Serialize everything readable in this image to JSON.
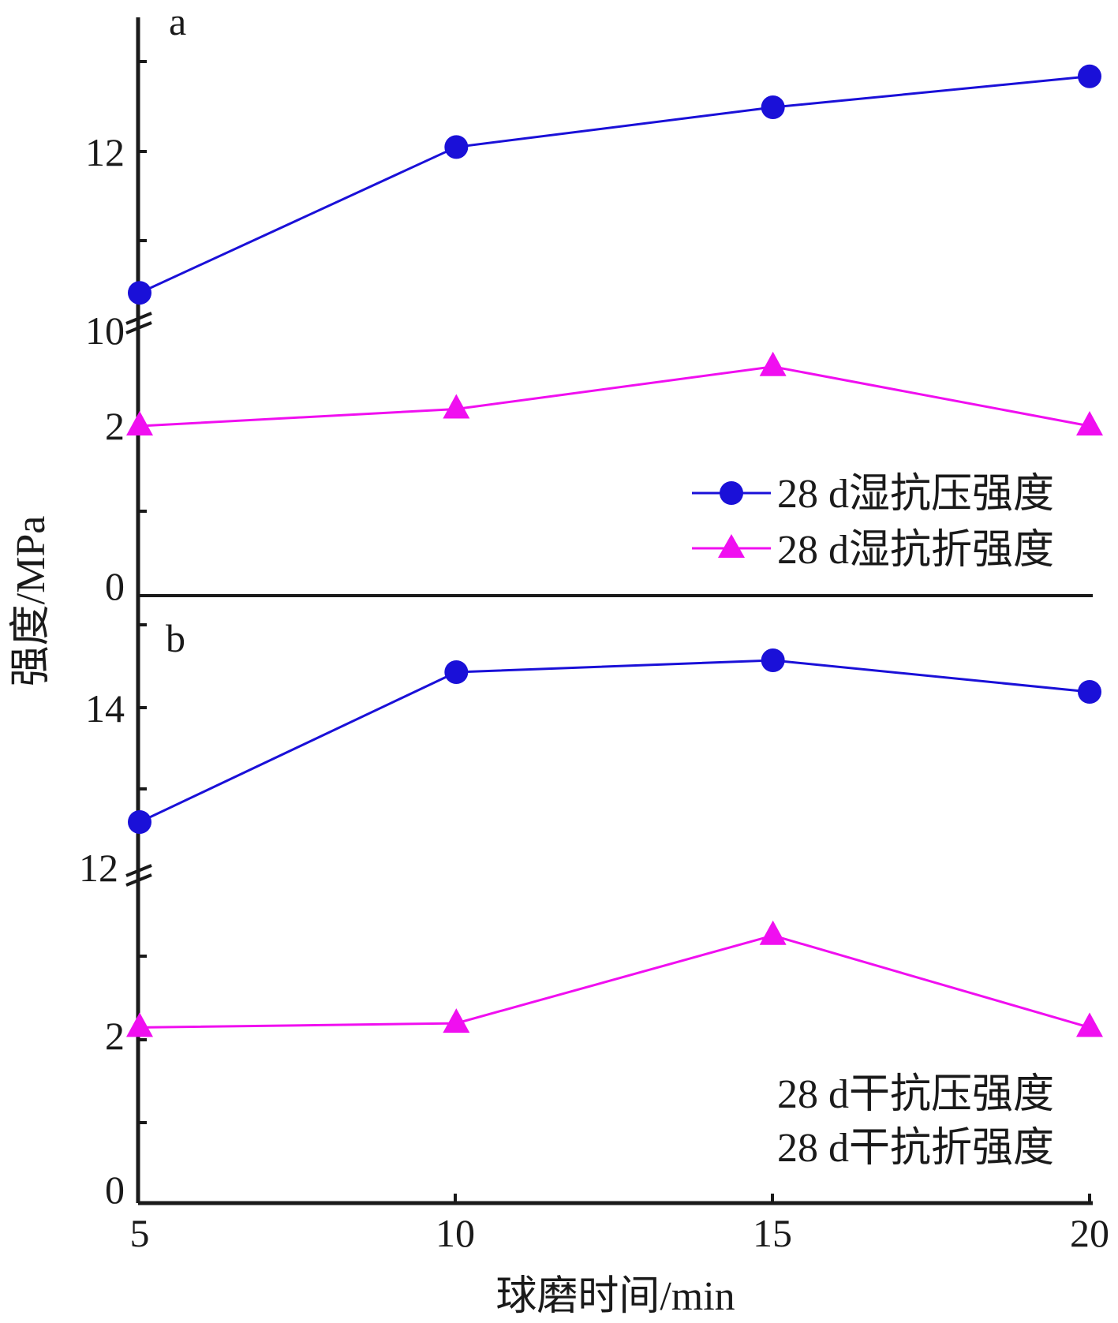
{
  "colors": {
    "compressive": "#1a10d8",
    "flexural": "#f00ff0",
    "axis": "#1a1a1a"
  },
  "chart_data": [
    {
      "type": "line",
      "panel": "a",
      "xlabel": "球磨时间/min",
      "ylabel": "强度/MPa",
      "x": [
        5,
        10,
        15,
        20
      ],
      "x_ticks": [
        "5",
        "10",
        "15",
        "20"
      ],
      "broken_y_axis": true,
      "y_lower_segment": {
        "range": [
          0,
          4
        ],
        "ticks": [
          "0",
          "2"
        ]
      },
      "y_upper_segment": {
        "range": [
          10,
          13.8
        ],
        "ticks": [
          "10",
          "12"
        ]
      },
      "series": [
        {
          "name": "28 d湿抗压强度",
          "marker": "circle",
          "values": [
            10.4,
            12.05,
            12.5,
            12.85
          ]
        },
        {
          "name": "28 d湿抗折强度",
          "marker": "triangle",
          "values": [
            2.0,
            2.2,
            2.7,
            2.0
          ]
        }
      ],
      "legend_position": "right"
    },
    {
      "type": "line",
      "panel": "b",
      "xlabel": "",
      "ylabel": "",
      "x": [
        5,
        10,
        15,
        20
      ],
      "broken_y_axis": true,
      "y_lower_segment": {
        "range": [
          0,
          4
        ],
        "ticks": [
          "0",
          "2"
        ]
      },
      "y_upper_segment": {
        "range": [
          12,
          15.3
        ],
        "ticks": [
          "12",
          "14"
        ]
      },
      "series": [
        {
          "name": "28 d干抗压强度",
          "marker": "circle",
          "values": [
            12.55,
            14.45,
            14.6,
            14.2
          ]
        },
        {
          "name": "28 d干抗折强度",
          "marker": "triangle",
          "values": [
            2.1,
            2.15,
            3.2,
            2.1
          ]
        }
      ],
      "legend_position": "bottom-right"
    }
  ],
  "labels": {
    "panel_a": "a",
    "panel_b": "b",
    "xlabel": "球磨时间/min",
    "ylabel": "强度/MPa",
    "x_ticks": [
      "5",
      "10",
      "15",
      "20"
    ],
    "a_y_ticks_lower": [
      "0",
      "2"
    ],
    "a_y_ticks_upper": [
      "10",
      "12"
    ],
    "b_y_ticks_lower": [
      "0",
      "2"
    ],
    "b_y_ticks_upper": [
      "12",
      "14"
    ],
    "legend_a_1": "28 d湿抗压强度",
    "legend_a_2": "28 d湿抗折强度",
    "legend_b_1": "28 d干抗压强度",
    "legend_b_2": "28 d干抗折强度"
  }
}
